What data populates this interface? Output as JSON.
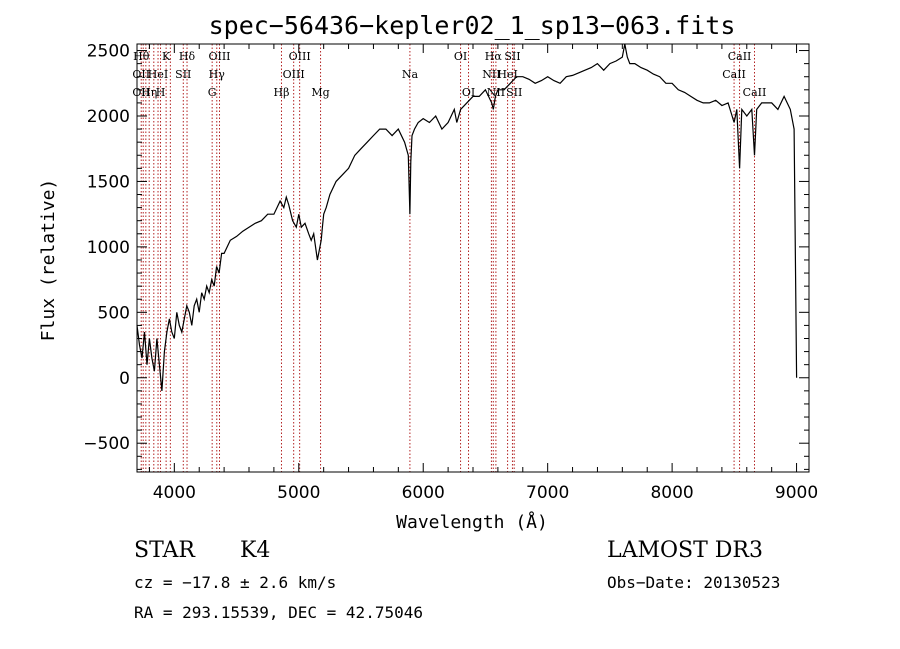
{
  "chart_data": {
    "type": "line",
    "title": "spec−56436−kepler02_1_sp13−063.fits",
    "xlabel": "Wavelength (Å)",
    "ylabel": "Flux (relative)",
    "xlim": [
      3700,
      9100
    ],
    "ylim": [
      -720,
      2550
    ],
    "x_ticks": [
      4000,
      5000,
      6000,
      7000,
      8000,
      9000
    ],
    "y_ticks": [
      -500,
      0,
      500,
      1000,
      1500,
      2000,
      2500
    ],
    "grid": false,
    "series": [
      {
        "name": "spectrum",
        "color": "#000000",
        "x": [
          3700,
          3720,
          3740,
          3760,
          3780,
          3800,
          3820,
          3840,
          3860,
          3880,
          3900,
          3920,
          3940,
          3960,
          3980,
          4000,
          4020,
          4040,
          4060,
          4080,
          4100,
          4120,
          4140,
          4160,
          4180,
          4200,
          4220,
          4240,
          4260,
          4280,
          4300,
          4320,
          4340,
          4360,
          4380,
          4400,
          4450,
          4500,
          4550,
          4600,
          4650,
          4700,
          4750,
          4800,
          4850,
          4880,
          4900,
          4920,
          4950,
          4980,
          5000,
          5020,
          5050,
          5080,
          5100,
          5120,
          5150,
          5180,
          5190,
          5200,
          5220,
          5250,
          5300,
          5350,
          5400,
          5450,
          5500,
          5550,
          5600,
          5650,
          5700,
          5750,
          5800,
          5850,
          5880,
          5893,
          5900,
          5910,
          5930,
          5960,
          6000,
          6050,
          6100,
          6150,
          6200,
          6250,
          6270,
          6300,
          6350,
          6400,
          6450,
          6500,
          6550,
          6563,
          6580,
          6600,
          6650,
          6700,
          6750,
          6800,
          6850,
          6900,
          6950,
          7000,
          7050,
          7100,
          7150,
          7200,
          7250,
          7300,
          7350,
          7400,
          7450,
          7500,
          7550,
          7600,
          7620,
          7640,
          7660,
          7700,
          7750,
          7800,
          7850,
          7900,
          7950,
          8000,
          8050,
          8100,
          8150,
          8200,
          8250,
          8300,
          8350,
          8400,
          8450,
          8498,
          8520,
          8542,
          8560,
          8600,
          8640,
          8662,
          8680,
          8720,
          8760,
          8800,
          8850,
          8900,
          8950,
          8980,
          9000
        ],
        "values": [
          400,
          250,
          150,
          350,
          100,
          300,
          150,
          50,
          300,
          100,
          -100,
          200,
          350,
          450,
          350,
          300,
          500,
          400,
          350,
          450,
          550,
          500,
          400,
          550,
          600,
          500,
          650,
          600,
          700,
          650,
          750,
          700,
          850,
          800,
          950,
          950,
          1050,
          1080,
          1120,
          1150,
          1180,
          1200,
          1250,
          1250,
          1350,
          1300,
          1380,
          1320,
          1200,
          1150,
          1250,
          1150,
          1180,
          1100,
          1050,
          1100,
          900,
          1050,
          1150,
          1250,
          1300,
          1400,
          1500,
          1550,
          1600,
          1700,
          1750,
          1800,
          1850,
          1900,
          1900,
          1850,
          1900,
          1800,
          1700,
          1250,
          1650,
          1850,
          1900,
          1950,
          1980,
          1950,
          2000,
          1900,
          1950,
          2050,
          1950,
          2050,
          2100,
          2150,
          2150,
          2200,
          2100,
          2050,
          2150,
          2200,
          2200,
          2250,
          2300,
          2300,
          2280,
          2250,
          2270,
          2300,
          2270,
          2250,
          2300,
          2310,
          2330,
          2350,
          2370,
          2400,
          2350,
          2400,
          2420,
          2450,
          2550,
          2450,
          2400,
          2400,
          2370,
          2350,
          2320,
          2300,
          2250,
          2250,
          2200,
          2180,
          2150,
          2120,
          2100,
          2100,
          2120,
          2080,
          2100,
          1950,
          2050,
          1600,
          2050,
          2000,
          2050,
          1700,
          2050,
          2100,
          2100,
          2100,
          2050,
          2150,
          2050,
          1900,
          0
        ]
      }
    ],
    "lines": [
      {
        "x": 3734,
        "labels": [
          "Hθ",
          "OII",
          "OII"
        ]
      },
      {
        "x": 3750,
        "labels": []
      },
      {
        "x": 3771,
        "labels": []
      },
      {
        "x": 3798,
        "labels": [
          "",
          "",
          "Hη"
        ]
      },
      {
        "x": 3835,
        "labels": []
      },
      {
        "x": 3869,
        "labels": [
          "",
          "HeI",
          ""
        ]
      },
      {
        "x": 3889,
        "labels": [
          "",
          "",
          "H"
        ]
      },
      {
        "x": 3934,
        "labels": [
          "K",
          "",
          ""
        ]
      },
      {
        "x": 3968,
        "labels": []
      },
      {
        "x": 4072,
        "labels": [
          "",
          "SII",
          ""
        ]
      },
      {
        "x": 4102,
        "labels": [
          "Hδ",
          "",
          ""
        ]
      },
      {
        "x": 4304,
        "labels": [
          "",
          "",
          "G"
        ]
      },
      {
        "x": 4341,
        "labels": [
          "",
          "Hγ",
          ""
        ]
      },
      {
        "x": 4363,
        "labels": [
          "OIII",
          "",
          ""
        ]
      },
      {
        "x": 4861,
        "labels": [
          "",
          "",
          "Hβ"
        ]
      },
      {
        "x": 4959,
        "labels": [
          "",
          "OIII",
          ""
        ]
      },
      {
        "x": 5007,
        "labels": [
          "OIII",
          "",
          ""
        ]
      },
      {
        "x": 5175,
        "labels": [
          "",
          "",
          "Mg"
        ]
      },
      {
        "x": 5893,
        "labels": [
          "",
          "Na",
          ""
        ]
      },
      {
        "x": 6300,
        "labels": [
          "OI",
          "",
          ""
        ]
      },
      {
        "x": 6364,
        "labels": [
          "",
          "",
          "OI"
        ]
      },
      {
        "x": 6548,
        "labels": [
          "",
          "NII",
          ""
        ]
      },
      {
        "x": 6563,
        "labels": [
          "Hα",
          "",
          ""
        ]
      },
      {
        "x": 6584,
        "labels": [
          "",
          "",
          "NII"
        ]
      },
      {
        "x": 6678,
        "labels": [
          "",
          "HeI",
          ""
        ]
      },
      {
        "x": 6717,
        "labels": [
          "SII",
          "",
          ""
        ]
      },
      {
        "x": 6731,
        "labels": [
          "",
          "",
          "SII"
        ]
      },
      {
        "x": 8498,
        "labels": [
          "",
          "CaII",
          ""
        ]
      },
      {
        "x": 8542,
        "labels": [
          "CaII",
          "",
          ""
        ]
      },
      {
        "x": 8662,
        "labels": [
          "",
          "",
          "CaII"
        ]
      }
    ]
  },
  "info": {
    "object_class": "STAR",
    "subclass": "K4",
    "survey": "LAMOST DR3",
    "redshift": "cz = −17.8 ± 2.6 km/s",
    "obs_date": "Obs−Date: 20130523",
    "coords": "RA = 293.15539, DEC =  42.75046"
  }
}
